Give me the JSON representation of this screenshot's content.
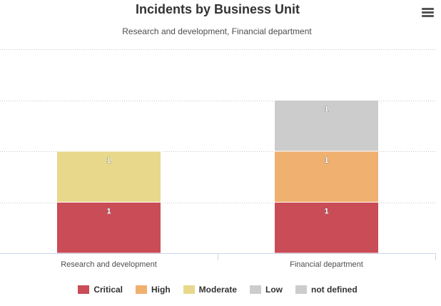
{
  "chart_data": {
    "type": "bar",
    "stacked": true,
    "title": "Incidents by Business Unit",
    "subtitle": "Research and development, Financial department",
    "categories": [
      "Research and development",
      "Financial department"
    ],
    "ylim": [
      0,
      4
    ],
    "grid": true,
    "legend_position": "bottom",
    "series": [
      {
        "name": "Critical",
        "color": "#c94c57",
        "values": [
          1,
          1
        ]
      },
      {
        "name": "High",
        "color": "#f0b070",
        "values": [
          0,
          1
        ]
      },
      {
        "name": "Moderate",
        "color": "#e8d88c",
        "values": [
          1,
          0
        ]
      },
      {
        "name": "Low",
        "color": "#cccccc",
        "values": [
          0,
          0
        ]
      },
      {
        "name": "not defined",
        "color": "#cccccc",
        "values": [
          0,
          1
        ]
      }
    ]
  },
  "menu": {
    "icon": "hamburger-menu-icon"
  }
}
